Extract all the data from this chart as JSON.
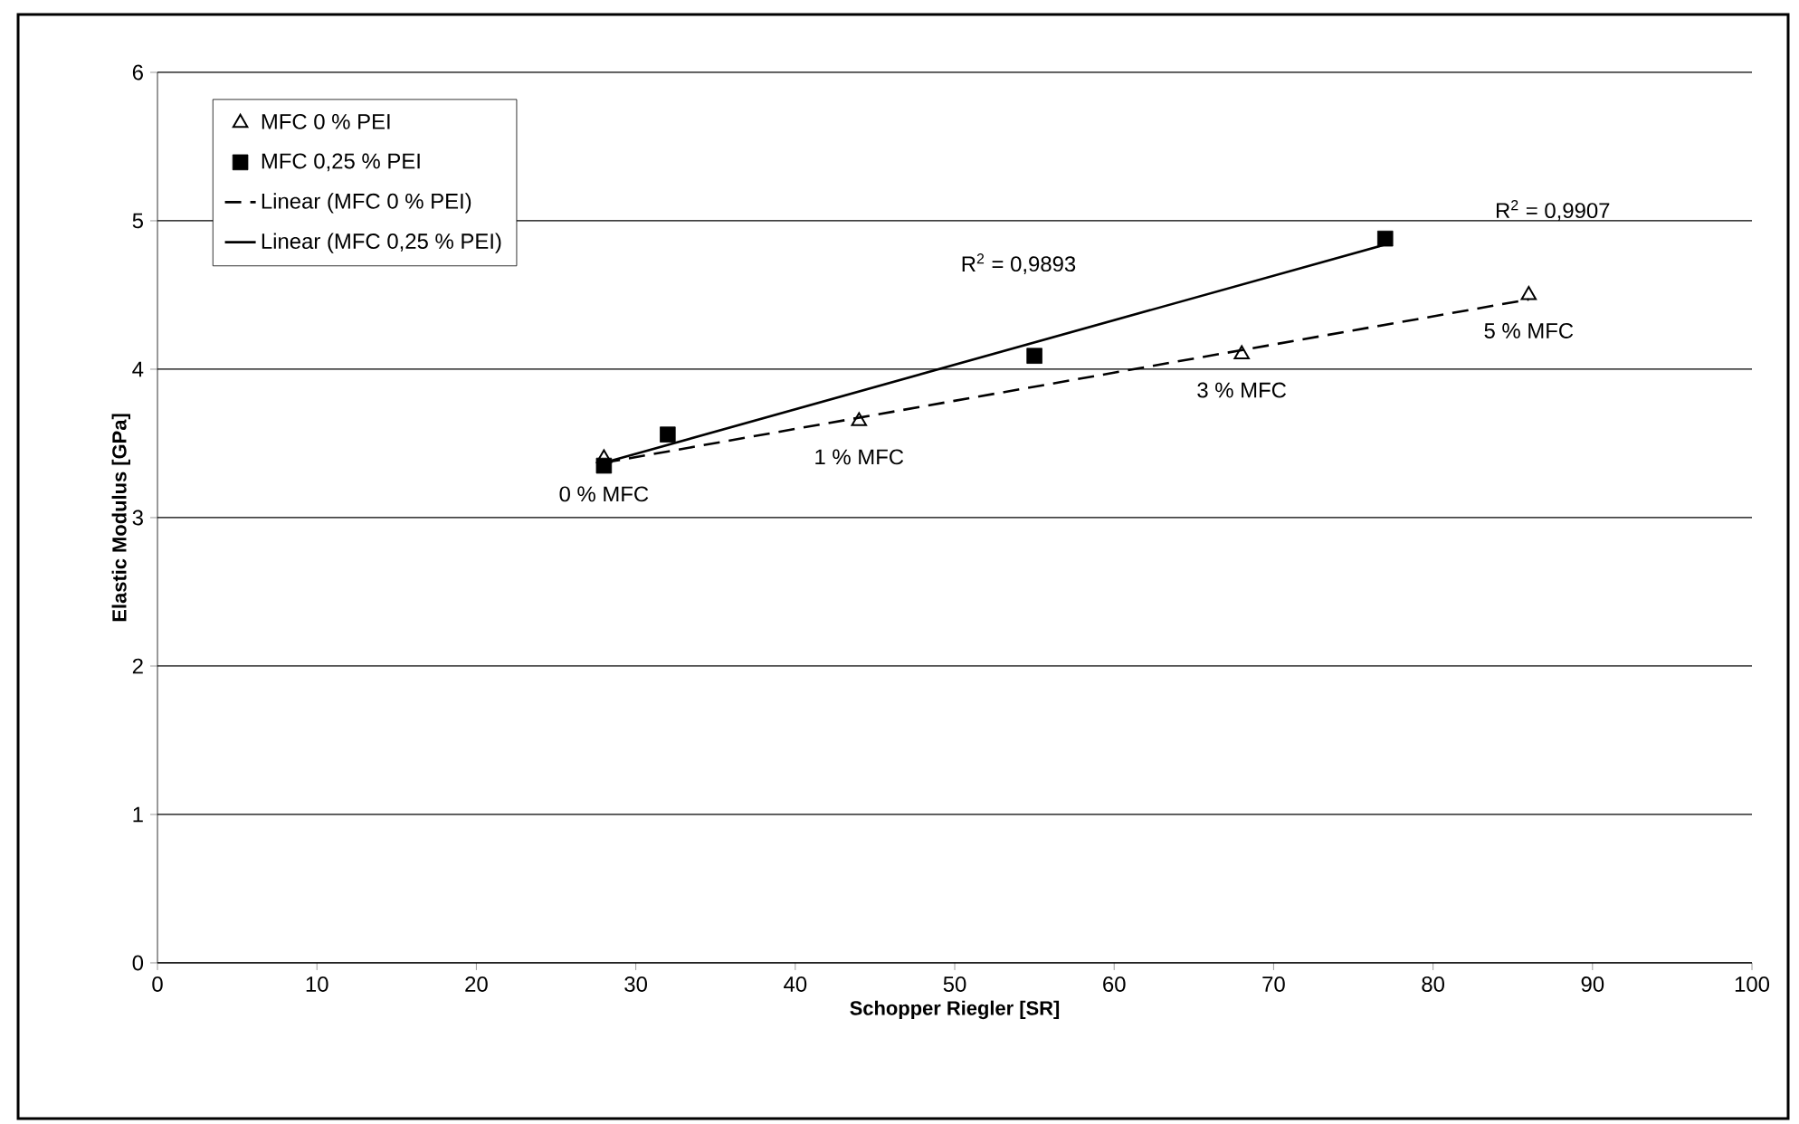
{
  "chart_data": {
    "type": "scatter",
    "xlabel": "Schopper Riegler [SR]",
    "ylabel": "Elastic Modulus [GPa]",
    "xlim": [
      0,
      100
    ],
    "xticks": [
      0,
      10,
      20,
      30,
      40,
      50,
      60,
      70,
      80,
      90,
      100
    ],
    "ylim": [
      0,
      6
    ],
    "yticks": [
      0,
      1,
      2,
      3,
      4,
      5,
      6
    ],
    "grid": "y",
    "legend": "top left",
    "series": [
      {
        "name": "MFC 0 % PEI",
        "marker": "triangle",
        "color": "#000000",
        "x": [
          28,
          44,
          68,
          86
        ],
        "values": [
          3.4,
          3.65,
          4.1,
          4.5
        ]
      },
      {
        "name": "MFC 0,25 % PEI",
        "marker": "square",
        "color": "#000000",
        "x": [
          28,
          32,
          55,
          77
        ],
        "values": [
          3.35,
          3.56,
          4.09,
          4.88
        ]
      },
      {
        "name": "Linear (MFC 0 % PEI)",
        "type": "line",
        "line_style": "dashed",
        "color": "#000000",
        "x": [
          28,
          86
        ],
        "values": [
          3.37,
          4.47
        ]
      },
      {
        "name": "Linear (MFC 0,25 % PEI)",
        "type": "line",
        "line_style": "solid",
        "color": "#000000",
        "x": [
          28,
          77
        ],
        "values": [
          3.37,
          4.84
        ]
      }
    ],
    "annotations": [
      "R$^{2}$ = 0,9893",
      "R$^{2}$ = 0,9907",
      {
        "text": "0 % MFC",
        "x": 28,
        "y": 3.4
      },
      {
        "text": "1 % MFC",
        "x": 44,
        "y": 3.65
      },
      {
        "text": "3 % MFC",
        "x": 68,
        "y": 4.1
      },
      {
        "text": "5 % MFC",
        "x": 86,
        "y": 4.5
      }
    ]
  }
}
